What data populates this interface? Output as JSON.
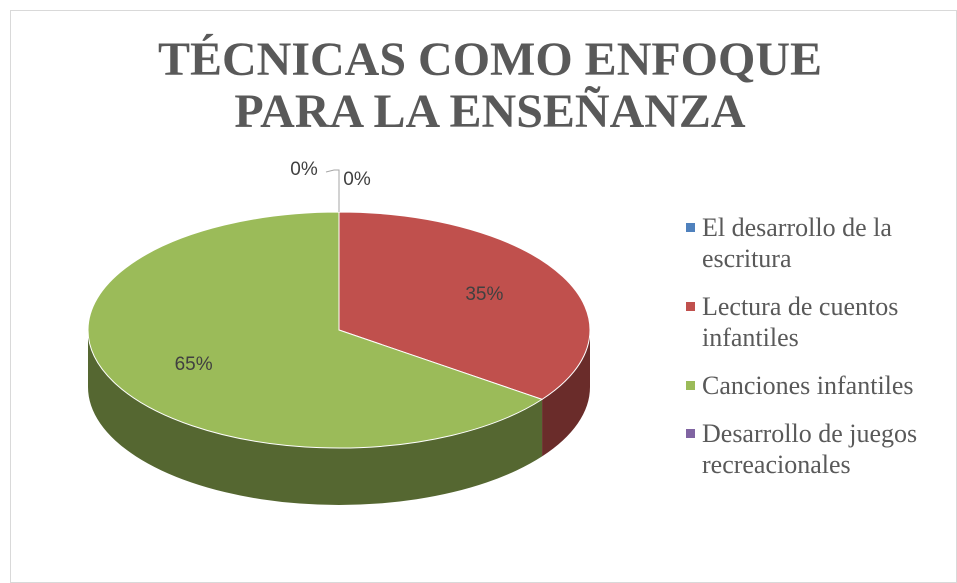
{
  "chart_data": {
    "type": "pie",
    "title": "TÉCNICAS COMO ENFOQUE PARA LA ENSEÑANZA",
    "categories": [
      "El desarrollo de la escritura",
      "Lectura de cuentos infantiles",
      "Canciones infantiles",
      "Desarrollo de juegos recreacionales"
    ],
    "values": [
      0,
      35,
      65,
      0
    ],
    "value_labels": [
      "0%",
      "35%",
      "65%",
      "0%"
    ],
    "colors": [
      "#4f81bd",
      "#c0504d",
      "#9bbb59",
      "#8064a2"
    ],
    "legend": "right"
  }
}
